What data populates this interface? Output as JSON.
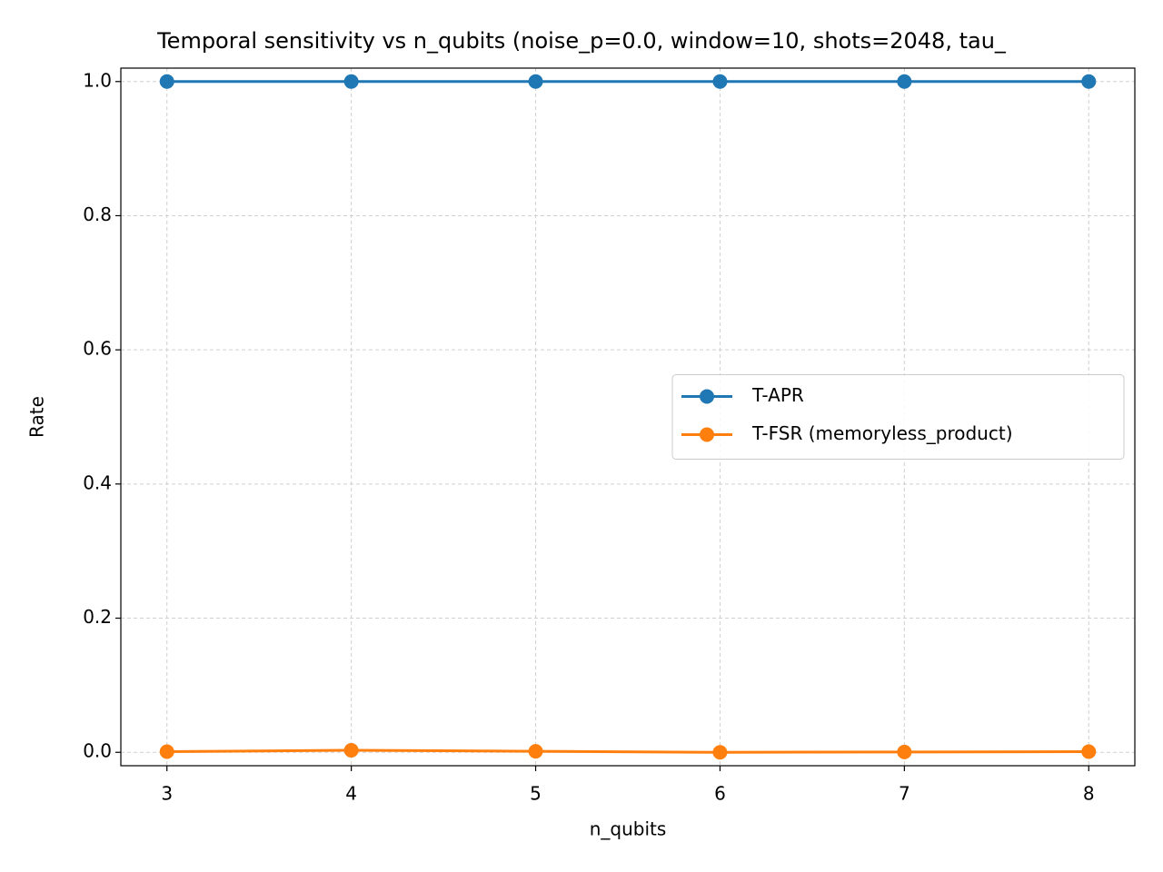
{
  "chart_data": {
    "type": "line",
    "title": "Temporal sensitivity vs n_qubits (noise_p=0.0, window=10, shots=2048, tau_",
    "x_label": "n_qubits",
    "y_label": "Rate",
    "x": [
      3,
      4,
      5,
      6,
      7,
      8
    ],
    "series": [
      {
        "name": "T-APR",
        "color": "#1f77b4",
        "values": [
          1.0,
          1.0,
          1.0,
          1.0,
          1.0,
          1.0
        ]
      },
      {
        "name": "T-FSR (memoryless_product)",
        "color": "#ff7f0e",
        "values": [
          0.001,
          0.003,
          0.0015,
          0.0,
          0.0005,
          0.001
        ]
      }
    ],
    "xlim": [
      2.75,
      8.25
    ],
    "xticks": [
      3,
      4,
      5,
      6,
      7,
      8
    ],
    "ylim": [
      -0.02,
      1.02
    ],
    "yticks": [
      {
        "value": 0,
        "label": "0.0"
      },
      0.2,
      0.4,
      0.6,
      0.8,
      {
        "value": 1,
        "label": "1.0"
      }
    ],
    "grid": true,
    "legend": "center right"
  }
}
